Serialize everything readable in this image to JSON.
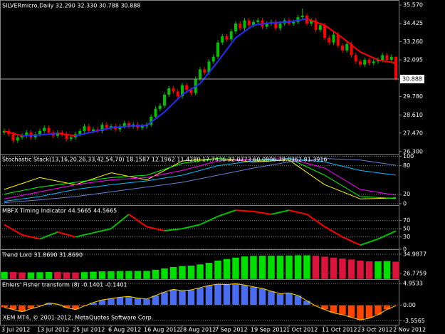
{
  "chart_data": [
    {
      "type": "candlestick",
      "title": "SILVERmicro,Daily  32.290 32.330 30.788 30.888",
      "categories": [
        "3 Jul 2012",
        null,
        null,
        null,
        null,
        null,
        null,
        null,
        "13 Jul 2012",
        null,
        null,
        null,
        null,
        null,
        null,
        null,
        "25 Jul 2012",
        null,
        null,
        null,
        null,
        null,
        null,
        null,
        "6 Aug 2012",
        null,
        null,
        null,
        null,
        null,
        null,
        null,
        "16 Aug 2012",
        null,
        null,
        null,
        null,
        null,
        null,
        null,
        "28 Aug 2012",
        null,
        null,
        null,
        null,
        null,
        null,
        null,
        "7 Sep 2012",
        null,
        null,
        null,
        null,
        null,
        null,
        null,
        "19 Sep 2012",
        null,
        null,
        null,
        null,
        null,
        null,
        null,
        "1 Oct 2012",
        null,
        null,
        null,
        null,
        null,
        null,
        null,
        "11 Oct 2012",
        null,
        null,
        null,
        null,
        null,
        null,
        null,
        "23 Oct 2012",
        null,
        null,
        null,
        null,
        null,
        null,
        null,
        "2 Nov 2012"
      ],
      "open": [
        27.5,
        27.6,
        27.4,
        27.0,
        27.2,
        27.3,
        27.5,
        27.2,
        27.4,
        27.6,
        27.8,
        27.5,
        27.3,
        27.5,
        27.4,
        27.1,
        27.2,
        27.4,
        27.6,
        27.9,
        27.6,
        27.7,
        27.6,
        28.0,
        27.8,
        27.9,
        27.7,
        27.9,
        28.1,
        27.9,
        28.0,
        27.8,
        27.9,
        28.0,
        28.5,
        29.0,
        29.2,
        29.9,
        30.3,
        30.1,
        29.8,
        30.5,
        30.2,
        30.0,
        30.9,
        31.5,
        31.3,
        32.0,
        32.3,
        33.2,
        33.6,
        33.4,
        33.9,
        34.4,
        34.1,
        34.6,
        34.3,
        34.5,
        34.6,
        34.2,
        34.4,
        34.5,
        34.1,
        34.4,
        34.6,
        34.4,
        34.5,
        34.8,
        34.9,
        34.4,
        34.6,
        34.0,
        34.3,
        33.5,
        33.2,
        33.7,
        33.0,
        32.7,
        33.1,
        32.4,
        32.0,
        31.8,
        32.1,
        31.9,
        32.0,
        32.1,
        32.4,
        32.1,
        32.29
      ],
      "high": [
        27.75,
        27.75,
        27.55,
        27.35,
        27.45,
        27.65,
        27.65,
        27.55,
        27.75,
        27.95,
        27.95,
        27.65,
        27.65,
        27.65,
        27.55,
        27.35,
        27.55,
        27.75,
        28.05,
        28.05,
        27.85,
        27.85,
        28.15,
        28.15,
        28.05,
        28.05,
        28.05,
        28.25,
        28.25,
        28.15,
        28.15,
        28.05,
        28.15,
        28.65,
        29.15,
        29.35,
        30.05,
        30.45,
        30.45,
        30.25,
        30.65,
        30.65,
        30.35,
        31.05,
        31.65,
        31.65,
        32.15,
        32.45,
        33.35,
        33.75,
        33.75,
        34.05,
        34.55,
        34.55,
        34.75,
        34.75,
        34.65,
        34.75,
        34.75,
        34.55,
        34.65,
        34.65,
        34.55,
        34.75,
        34.75,
        34.65,
        34.95,
        35.35,
        35.05,
        34.75,
        34.75,
        34.45,
        34.45,
        33.65,
        33.85,
        33.85,
        33.15,
        33.25,
        33.25,
        32.55,
        32.15,
        32.25,
        32.25,
        32.15,
        32.25,
        32.55,
        32.55,
        32.44,
        32.33
      ],
      "low": [
        27.35,
        27.25,
        26.85,
        26.85,
        27.05,
        27.15,
        27.05,
        27.05,
        27.25,
        27.45,
        27.35,
        27.15,
        27.15,
        27.25,
        26.95,
        26.95,
        27.05,
        27.25,
        27.45,
        27.45,
        27.45,
        27.45,
        27.45,
        27.65,
        27.65,
        27.55,
        27.55,
        27.75,
        27.75,
        27.75,
        27.65,
        27.65,
        27.75,
        27.85,
        28.35,
        28.85,
        29.05,
        29.75,
        29.95,
        29.65,
        29.65,
        30.05,
        29.85,
        29.85,
        30.75,
        31.15,
        31.15,
        31.85,
        32.15,
        33.05,
        33.25,
        33.25,
        33.75,
        33.95,
        33.95,
        34.15,
        34.15,
        34.35,
        34.05,
        34.05,
        34.25,
        33.95,
        33.95,
        34.25,
        34.25,
        34.25,
        34.35,
        34.65,
        34.25,
        34.25,
        33.85,
        33.85,
        33.35,
        33.05,
        33.05,
        32.85,
        32.55,
        32.55,
        32.25,
        31.85,
        31.65,
        31.65,
        31.75,
        31.75,
        31.85,
        31.95,
        31.95,
        31.95,
        30.788
      ],
      "close": [
        27.6,
        27.4,
        27.0,
        27.2,
        27.3,
        27.5,
        27.2,
        27.4,
        27.6,
        27.8,
        27.5,
        27.3,
        27.5,
        27.4,
        27.1,
        27.2,
        27.4,
        27.6,
        27.9,
        27.6,
        27.7,
        27.6,
        28.0,
        27.8,
        27.9,
        27.7,
        27.9,
        28.1,
        27.9,
        28.0,
        27.8,
        27.9,
        28.0,
        28.5,
        29.0,
        29.2,
        29.9,
        30.3,
        30.1,
        29.8,
        30.5,
        30.2,
        30.0,
        30.9,
        31.5,
        31.3,
        32.0,
        32.3,
        33.2,
        33.6,
        33.4,
        33.9,
        34.4,
        34.1,
        34.6,
        34.3,
        34.5,
        34.6,
        34.2,
        34.4,
        34.5,
        34.1,
        34.4,
        34.6,
        34.4,
        34.5,
        34.8,
        34.9,
        34.4,
        34.6,
        34.0,
        34.3,
        33.5,
        33.2,
        33.7,
        33.0,
        32.7,
        33.1,
        32.4,
        32.0,
        31.8,
        32.1,
        31.9,
        32.0,
        32.1,
        32.4,
        32.1,
        32.29,
        30.888
      ],
      "up_color": "#00c000",
      "down_color": "#ff0000",
      "ma": {
        "x": [
          0,
          4,
          8,
          12,
          16,
          20,
          24,
          28,
          32,
          36,
          40,
          44,
          48,
          52,
          56,
          60,
          64,
          68,
          72,
          76,
          80,
          84,
          88
        ],
        "values": [
          27.6,
          27.3,
          27.35,
          27.45,
          27.3,
          27.55,
          27.8,
          27.9,
          27.95,
          28.8,
          29.9,
          30.6,
          32.0,
          33.5,
          34.3,
          34.45,
          34.5,
          34.7,
          34.3,
          33.5,
          32.6,
          32.1,
          31.9
        ],
        "up_color": "#2a2aff",
        "down_color": "#ff0000"
      },
      "ylim": [
        26.2,
        35.8
      ],
      "yticks": [
        {
          "value": 35.57,
          "label": "35.570"
        },
        34.425,
        {
          "value": 33.26,
          "label": "33.260"
        },
        32.095,
        {
          "value": 29.78,
          "label": "29.780"
        },
        {
          "value": 28.61,
          "label": "28.610"
        },
        {
          "value": 27.47,
          "label": "27.470"
        },
        {
          "value": 26.3,
          "label": "26.300"
        }
      ]
    },
    {
      "type": "line",
      "title": "Stochastic Stack(13,16,20,26,33,42,54,70) 18.1587 12.1962 11.4280 17.7436 32.0773 60.0806 79.0362 81.3916",
      "x": [
        0,
        8,
        16,
        24,
        32,
        40,
        48,
        56,
        64,
        72,
        80,
        88
      ],
      "series": [
        {
          "color": "#ffff00",
          "values": [
            30,
            55,
            40,
            65,
            50,
            90,
            95,
            88,
            92,
            40,
            10,
            12
          ]
        },
        {
          "color": "#00ff00",
          "values": [
            20,
            35,
            45,
            55,
            60,
            85,
            95,
            92,
            95,
            60,
            15,
            11
          ]
        },
        {
          "color": "#ff00ff",
          "values": [
            10,
            25,
            40,
            50,
            55,
            70,
            90,
            93,
            95,
            75,
            30,
            18
          ]
        },
        {
          "color": "#00bfff",
          "values": [
            5,
            15,
            30,
            40,
            48,
            60,
            80,
            90,
            95,
            88,
            70,
            60
          ]
        },
        {
          "color": "#6a7fd0",
          "values": [
            2,
            8,
            15,
            25,
            35,
            45,
            60,
            75,
            88,
            95,
            92,
            81
          ]
        }
      ],
      "ylim": [
        -3,
        102
      ],
      "yticks": [
        100,
        80,
        20,
        0
      ]
    },
    {
      "type": "line",
      "title": "MBFX Timing Indicator 44.5665 44.5665",
      "x": [
        0,
        4,
        8,
        12,
        16,
        20,
        24,
        28,
        32,
        36,
        40,
        44,
        48,
        52,
        56,
        60,
        64,
        68,
        72,
        76,
        80,
        84,
        88
      ],
      "series": [
        {
          "values": [
            60,
            35,
            25,
            42,
            30,
            40,
            50,
            85,
            55,
            45,
            50,
            60,
            80,
            95,
            92,
            85,
            95,
            85,
            55,
            30,
            10,
            25,
            44.5665
          ]
        }
      ],
      "up_color": "#00c000",
      "down_color": "#ff0000",
      "ylim": [
        0,
        104
      ],
      "yticks": [
        70,
        50,
        30,
        0
      ]
    },
    {
      "type": "bar",
      "title": "Trend Lord 31.8690 31.8690",
      "x": [
        0,
        2,
        4,
        6,
        8,
        10,
        12,
        14,
        16,
        18,
        20,
        22,
        24,
        26,
        28,
        30,
        32,
        34,
        36,
        38,
        40,
        42,
        44,
        46,
        48,
        50,
        52,
        54,
        56,
        58,
        60,
        62,
        64,
        66,
        68,
        70,
        72,
        74,
        76,
        78,
        80,
        82,
        84,
        86,
        88
      ],
      "values": [
        27.5,
        27.4,
        27.3,
        27.3,
        27.35,
        27.45,
        27.4,
        27.3,
        27.25,
        27.4,
        27.55,
        27.7,
        27.8,
        27.85,
        27.9,
        27.9,
        27.9,
        28.4,
        29.0,
        29.6,
        30.0,
        30.2,
        30.7,
        31.4,
        32.3,
        33.0,
        33.6,
        34.1,
        34.35,
        34.4,
        34.4,
        34.4,
        34.5,
        34.6,
        34.6,
        34.4,
        34.0,
        33.6,
        33.2,
        32.8,
        32.3,
        32.0,
        32.0,
        32.1,
        31.869
      ],
      "up_color": "#00e000",
      "down_color": "#dc143c",
      "ylim": [
        24.3,
        36.5
      ],
      "yticks": [
        34.9877,
        26.7759
      ]
    },
    {
      "type": "bar",
      "title": "Ehlers' Fisher transform (8) -0.1401 -0.1401",
      "x": [
        0,
        2,
        4,
        6,
        8,
        10,
        12,
        14,
        16,
        18,
        20,
        22,
        24,
        26,
        28,
        30,
        32,
        34,
        36,
        38,
        40,
        42,
        44,
        46,
        48,
        50,
        52,
        54,
        56,
        58,
        60,
        62,
        64,
        66,
        68,
        70,
        72,
        74,
        76,
        78,
        80,
        82,
        84,
        86,
        88
      ],
      "values": [
        -0.5,
        -1.0,
        -1.5,
        -0.8,
        -0.3,
        0.5,
        0.2,
        -0.6,
        -1.0,
        -0.2,
        0.6,
        1.2,
        1.5,
        1.8,
        2.0,
        1.6,
        1.4,
        2.2,
        3.0,
        3.6,
        3.3,
        3.5,
        4.0,
        4.5,
        4.8,
        4.7,
        4.9,
        4.6,
        4.2,
        3.8,
        3.2,
        2.6,
        2.8,
        2.2,
        1.0,
        -0.2,
        -1.0,
        -1.8,
        -2.2,
        -2.8,
        -3.4,
        -3.0,
        -2.2,
        -1.0,
        -0.1401
      ],
      "up_color": "#4a6cf0",
      "down_color": "#ff4500",
      "line_color": "#ffd700",
      "ylim": [
        -4.49,
        5.62
      ],
      "yticks": [
        4.9533,
        {
          "value": 0,
          "label": "0.00"
        },
        -3.5565
      ]
    }
  ],
  "footer": "XEM MT4, © 2001-2012, MetaQuotes Software Corp."
}
